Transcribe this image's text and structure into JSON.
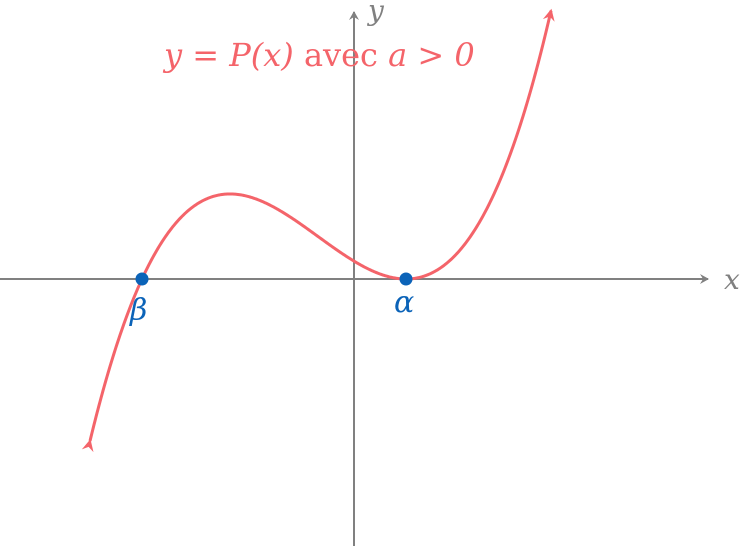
{
  "title": {
    "prefix": "y = P(x)",
    "middle": " avec ",
    "suffix": "a > 0"
  },
  "axes": {
    "x_label": "x",
    "y_label": "y"
  },
  "points": [
    {
      "label": "β",
      "role": "single root"
    },
    {
      "label": "α",
      "role": "double root"
    }
  ],
  "colors": {
    "curve": "#f4646a",
    "points": "#0b63b8",
    "axes": "#808080"
  }
}
